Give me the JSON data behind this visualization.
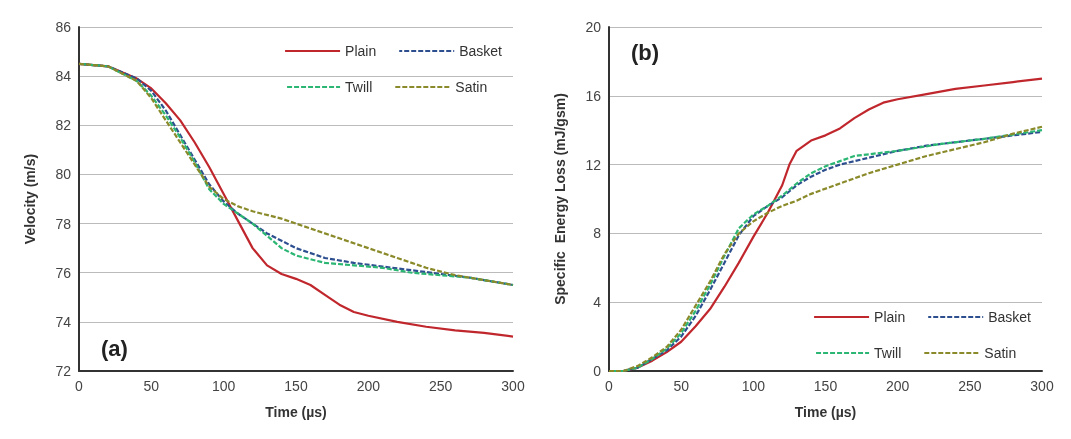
{
  "chart_data": [
    {
      "type": "line",
      "xlabel": "Time (µs)",
      "ylabel": "Velocity (m/s)",
      "xlim": [
        0,
        300
      ],
      "xticks": [
        0,
        50,
        100,
        150,
        200,
        250,
        300
      ],
      "ylim": [
        72,
        86
      ],
      "yticks": [
        72,
        74,
        76,
        78,
        80,
        82,
        84,
        86
      ],
      "grid": "y",
      "legend": "top right",
      "marker": "none",
      "annotations": [
        "(a)"
      ],
      "series": [
        {
          "name": "Plain",
          "color": "#c0272d",
          "line_style": "solid",
          "x": [
            0,
            20,
            40,
            50,
            60,
            70,
            80,
            90,
            100,
            110,
            120,
            130,
            140,
            150,
            160,
            170,
            180,
            190,
            200,
            220,
            240,
            260,
            280,
            300
          ],
          "values": [
            84.5,
            84.4,
            83.9,
            83.5,
            82.9,
            82.2,
            81.3,
            80.3,
            79.2,
            78.1,
            77.0,
            76.3,
            75.95,
            75.75,
            75.5,
            75.1,
            74.7,
            74.4,
            74.25,
            74.0,
            73.8,
            73.65,
            73.55,
            73.4
          ]
        },
        {
          "name": "Basket",
          "color": "#2e4f8f",
          "line_style": "dashed",
          "x": [
            0,
            20,
            40,
            50,
            60,
            70,
            80,
            90,
            100,
            110,
            120,
            130,
            140,
            150,
            170,
            190,
            210,
            230,
            250,
            270,
            300
          ],
          "values": [
            84.5,
            84.4,
            83.9,
            83.4,
            82.6,
            81.6,
            80.6,
            79.6,
            78.9,
            78.4,
            78.0,
            77.6,
            77.3,
            77.0,
            76.6,
            76.4,
            76.25,
            76.1,
            75.95,
            75.8,
            75.5
          ]
        },
        {
          "name": "Twill",
          "color": "#2bb673",
          "line_style": "dashed",
          "x": [
            0,
            20,
            40,
            50,
            60,
            70,
            80,
            90,
            100,
            110,
            120,
            130,
            140,
            150,
            170,
            190,
            210,
            230,
            250,
            270,
            300
          ],
          "values": [
            84.5,
            84.4,
            83.8,
            83.2,
            82.4,
            81.5,
            80.5,
            79.4,
            78.8,
            78.4,
            78.0,
            77.5,
            77.0,
            76.7,
            76.4,
            76.3,
            76.2,
            76.0,
            75.9,
            75.8,
            75.5
          ]
        },
        {
          "name": "Satin",
          "color": "#8a8a2a",
          "line_style": "dashed",
          "x": [
            0,
            20,
            40,
            50,
            60,
            70,
            80,
            90,
            100,
            110,
            120,
            140,
            160,
            180,
            200,
            220,
            240,
            260,
            280,
            300
          ],
          "values": [
            84.5,
            84.4,
            83.8,
            83.1,
            82.2,
            81.3,
            80.4,
            79.5,
            79.0,
            78.7,
            78.5,
            78.2,
            77.8,
            77.4,
            77.0,
            76.6,
            76.2,
            75.9,
            75.7,
            75.5
          ]
        }
      ]
    },
    {
      "type": "line",
      "xlabel": "Time (µs)",
      "ylabel": "Specific  Energy Loss (mJ/gsm)",
      "xlim": [
        0,
        300
      ],
      "xticks": [
        0,
        50,
        100,
        150,
        200,
        250,
        300
      ],
      "ylim": [
        0,
        20
      ],
      "yticks": [
        0,
        4,
        8,
        12,
        16,
        20
      ],
      "grid": "y",
      "legend": "bottom right",
      "marker": "none",
      "annotations": [
        "(b)"
      ],
      "series": [
        {
          "name": "Plain",
          "color": "#c0272d",
          "line_style": "solid",
          "x": [
            0,
            10,
            20,
            30,
            40,
            50,
            60,
            70,
            80,
            90,
            100,
            110,
            120,
            125,
            130,
            140,
            150,
            160,
            170,
            180,
            190,
            200,
            220,
            240,
            260,
            280,
            300
          ],
          "values": [
            0,
            0,
            0.2,
            0.6,
            1.1,
            1.7,
            2.6,
            3.6,
            4.9,
            6.3,
            7.8,
            9.2,
            10.8,
            12,
            12.8,
            13.4,
            13.7,
            14.1,
            14.7,
            15.2,
            15.6,
            15.8,
            16.1,
            16.4,
            16.6,
            16.8,
            17.0
          ]
        },
        {
          "name": "Basket",
          "color": "#2e4f8f",
          "line_style": "dashed",
          "x": [
            0,
            10,
            20,
            30,
            40,
            50,
            60,
            70,
            80,
            90,
            100,
            110,
            120,
            130,
            140,
            150,
            160,
            180,
            200,
            220,
            240,
            260,
            280,
            300
          ],
          "values": [
            0,
            0,
            0.2,
            0.7,
            1.2,
            2.0,
            3.2,
            4.7,
            6.3,
            7.9,
            9.0,
            9.6,
            10.1,
            10.8,
            11.3,
            11.7,
            12.0,
            12.4,
            12.8,
            13.1,
            13.3,
            13.5,
            13.7,
            13.9
          ]
        },
        {
          "name": "Twill",
          "color": "#2bb673",
          "line_style": "dashed",
          "x": [
            0,
            10,
            20,
            30,
            40,
            50,
            60,
            70,
            80,
            90,
            100,
            110,
            120,
            130,
            140,
            150,
            160,
            170,
            200,
            230,
            260,
            300
          ],
          "values": [
            0,
            0,
            0.2,
            0.7,
            1.3,
            2.2,
            3.5,
            5.0,
            6.7,
            8.3,
            9.1,
            9.6,
            10.2,
            10.9,
            11.5,
            11.9,
            12.2,
            12.5,
            12.8,
            13.2,
            13.5,
            14.0
          ]
        },
        {
          "name": "Satin",
          "color": "#8a8a2a",
          "line_style": "dashed",
          "x": [
            0,
            10,
            20,
            30,
            40,
            50,
            60,
            70,
            80,
            90,
            100,
            110,
            120,
            130,
            140,
            160,
            180,
            200,
            220,
            240,
            260,
            280,
            300
          ],
          "values": [
            0,
            0,
            0.3,
            0.8,
            1.4,
            2.4,
            3.8,
            5.2,
            6.8,
            8.0,
            8.7,
            9.2,
            9.6,
            9.9,
            10.3,
            10.9,
            11.5,
            12.0,
            12.5,
            12.9,
            13.3,
            13.8,
            14.2
          ]
        }
      ]
    }
  ]
}
